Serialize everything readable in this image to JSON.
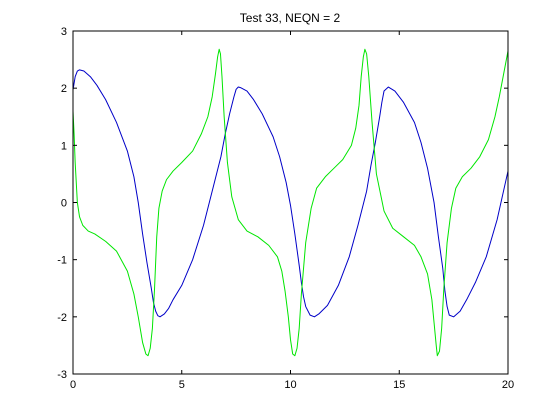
{
  "chart_data": {
    "type": "line",
    "title": "Test 33, NEQN = 2",
    "xlabel": "",
    "ylabel": "",
    "xlim": [
      0,
      20
    ],
    "ylim": [
      -3,
      3
    ],
    "xticks": [
      0,
      5,
      10,
      15,
      20
    ],
    "yticks": [
      -3,
      -2,
      -1,
      0,
      1,
      2,
      3
    ],
    "xtick_labels": [
      "0",
      "5",
      "10",
      "15",
      "20"
    ],
    "ytick_labels": [
      "-3",
      "-2",
      "-1",
      "0",
      "1",
      "2",
      "3"
    ],
    "grid": false,
    "legend": null,
    "series": [
      {
        "color": "#0000c8",
        "x": [
          0.0,
          0.1,
          0.2,
          0.3,
          0.5,
          0.8,
          1.1,
          1.5,
          2.0,
          2.5,
          2.8,
          3.0,
          3.2,
          3.4,
          3.6,
          3.7,
          3.8,
          3.9,
          4.0,
          4.2,
          4.4,
          4.6,
          5.0,
          5.5,
          6.0,
          6.4,
          6.8,
          7.0,
          7.2,
          7.4,
          7.5,
          7.6,
          7.7,
          8.0,
          8.3,
          8.7,
          9.2,
          9.5,
          9.8,
          10.0,
          10.2,
          10.4,
          10.5,
          10.6,
          10.7,
          10.9,
          11.1,
          11.3,
          11.7,
          12.2,
          12.7,
          13.1,
          13.5,
          13.7,
          13.9,
          14.1,
          14.2,
          14.3,
          14.5,
          14.8,
          15.2,
          15.7,
          16.0,
          16.3,
          16.6,
          16.8,
          17.0,
          17.1,
          17.2,
          17.3,
          17.5,
          17.8,
          18.1,
          18.5,
          19.0,
          19.5,
          20.0
        ],
        "y": [
          1.97,
          2.2,
          2.3,
          2.32,
          2.3,
          2.2,
          2.05,
          1.8,
          1.4,
          0.9,
          0.45,
          0.0,
          -0.55,
          -1.05,
          -1.5,
          -1.75,
          -1.9,
          -1.98,
          -2.0,
          -1.95,
          -1.85,
          -1.7,
          -1.45,
          -1.0,
          -0.4,
          0.2,
          0.8,
          1.2,
          1.55,
          1.85,
          1.98,
          2.02,
          2.01,
          1.95,
          1.8,
          1.55,
          1.15,
          0.8,
          0.35,
          -0.05,
          -0.55,
          -1.1,
          -1.4,
          -1.65,
          -1.82,
          -1.97,
          -2.0,
          -1.95,
          -1.8,
          -1.45,
          -0.95,
          -0.4,
          0.2,
          0.65,
          1.05,
          1.5,
          1.75,
          1.95,
          2.02,
          1.95,
          1.75,
          1.4,
          1.05,
          0.6,
          0.0,
          -0.6,
          -1.15,
          -1.55,
          -1.82,
          -1.97,
          -2.0,
          -1.9,
          -1.7,
          -1.4,
          -0.95,
          -0.3,
          0.55
        ]
      },
      {
        "color": "#00e600",
        "x": [
          0.0,
          0.05,
          0.1,
          0.2,
          0.3,
          0.45,
          0.7,
          1.0,
          1.5,
          2.0,
          2.5,
          2.8,
          3.0,
          3.2,
          3.35,
          3.45,
          3.55,
          3.65,
          3.75,
          3.85,
          3.95,
          4.1,
          4.3,
          4.6,
          5.0,
          5.5,
          5.9,
          6.2,
          6.4,
          6.55,
          6.65,
          6.72,
          6.78,
          6.85,
          6.95,
          7.1,
          7.3,
          7.6,
          8.0,
          8.5,
          9.0,
          9.4,
          9.6,
          9.75,
          9.9,
          10.0,
          10.1,
          10.2,
          10.3,
          10.4,
          10.5,
          10.7,
          10.95,
          11.2,
          11.6,
          12.0,
          12.4,
          12.8,
          13.0,
          13.15,
          13.25,
          13.35,
          13.42,
          13.5,
          13.6,
          13.75,
          13.95,
          14.3,
          14.7,
          15.2,
          15.7,
          16.0,
          16.3,
          16.5,
          16.6,
          16.7,
          16.75,
          16.85,
          16.95,
          17.05,
          17.2,
          17.4,
          17.6,
          17.9,
          18.3,
          18.7,
          19.1,
          19.4,
          19.6,
          19.8,
          20.0
        ],
        "y": [
          1.6,
          1.2,
          0.7,
          0.0,
          -0.25,
          -0.4,
          -0.5,
          -0.55,
          -0.68,
          -0.85,
          -1.2,
          -1.6,
          -2.0,
          -2.45,
          -2.65,
          -2.68,
          -2.55,
          -2.2,
          -1.5,
          -0.6,
          -0.1,
          0.2,
          0.4,
          0.55,
          0.7,
          0.9,
          1.2,
          1.5,
          1.85,
          2.25,
          2.55,
          2.68,
          2.6,
          2.2,
          1.5,
          0.7,
          0.1,
          -0.3,
          -0.5,
          -0.6,
          -0.75,
          -0.95,
          -1.2,
          -1.55,
          -2.0,
          -2.4,
          -2.65,
          -2.68,
          -2.55,
          -2.2,
          -1.6,
          -0.7,
          -0.1,
          0.25,
          0.45,
          0.6,
          0.75,
          1.0,
          1.3,
          1.7,
          2.2,
          2.55,
          2.68,
          2.6,
          2.2,
          1.4,
          0.5,
          -0.15,
          -0.45,
          -0.6,
          -0.75,
          -0.95,
          -1.25,
          -1.7,
          -2.1,
          -2.5,
          -2.68,
          -2.6,
          -2.2,
          -1.5,
          -0.7,
          -0.1,
          0.25,
          0.45,
          0.6,
          0.8,
          1.1,
          1.5,
          1.85,
          2.25,
          2.65
        ]
      }
    ]
  }
}
